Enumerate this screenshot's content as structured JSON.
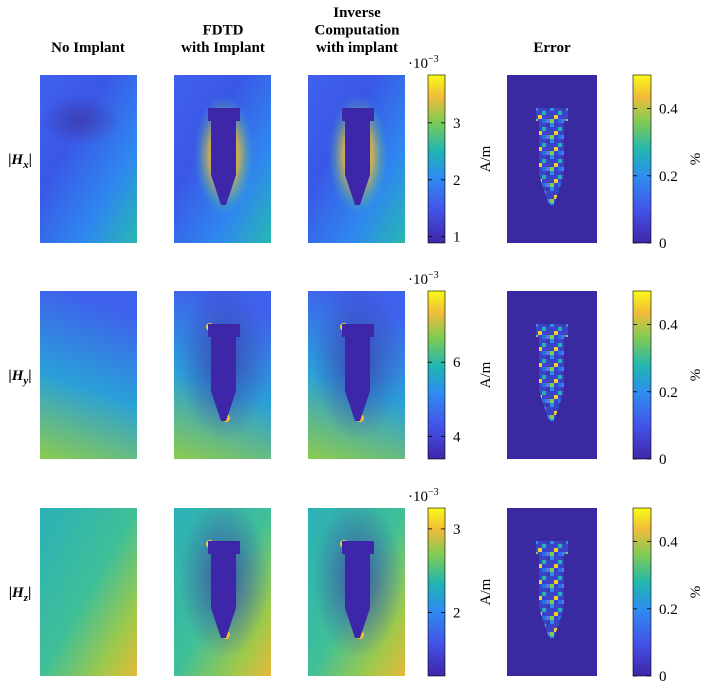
{
  "columns": [
    [
      "No Implant"
    ],
    [
      "FDTD",
      "with Implant"
    ],
    [
      "Inverse",
      "Computation",
      "with implant"
    ],
    [
      "Error"
    ]
  ],
  "rows": [
    {
      "label": {
        "open": "|",
        "symbol": "H",
        "subscript": "x",
        "close": "|"
      },
      "field_colorbar": {
        "lim": [
          0.89,
          3.84
        ],
        "ticks": [
          1,
          2,
          3
        ],
        "unit": "A/m",
        "multiplier": {
          "base": "·10",
          "exponent": "−3"
        }
      },
      "error_colorbar": {
        "lim": [
          0,
          0.5
        ],
        "ticks": [
          0,
          0.2,
          0.4
        ],
        "unit": "%"
      }
    },
    {
      "label": {
        "open": "|",
        "symbol": "H",
        "subscript": "y",
        "close": "|"
      },
      "field_colorbar": {
        "lim": [
          3.39,
          7.92
        ],
        "ticks": [
          4,
          6
        ],
        "unit": "A/m",
        "multiplier": {
          "base": "·10",
          "exponent": "−3"
        }
      },
      "error_colorbar": {
        "lim": [
          0,
          0.5
        ],
        "ticks": [
          0,
          0.2,
          0.4
        ],
        "unit": "%"
      }
    },
    {
      "label": {
        "open": "|",
        "symbol": "H",
        "subscript": "z",
        "close": "|"
      },
      "field_colorbar": {
        "lim": [
          1.24,
          3.25
        ],
        "ticks": [
          2,
          3
        ],
        "unit": "A/m",
        "multiplier": {
          "base": "·10",
          "exponent": "−3"
        }
      },
      "error_colorbar": {
        "lim": [
          0,
          0.5
        ],
        "ticks": [
          0,
          0.2,
          0.4
        ],
        "unit": "%"
      }
    }
  ]
}
